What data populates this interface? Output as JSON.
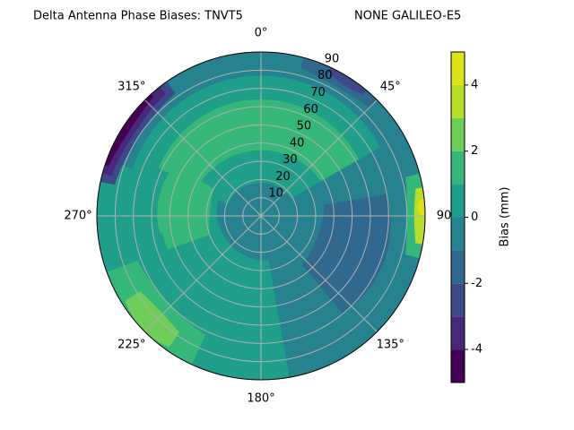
{
  "chart_data": {
    "type": "polar-contour",
    "title": "Delta Antenna Phase Biases: TNVT5",
    "subtitle": "NONE GALILEO-E5",
    "theta_ticks": [
      {
        "value": 0,
        "label": "0°"
      },
      {
        "value": 45,
        "label": "45°"
      },
      {
        "value": 90,
        "label": "90"
      },
      {
        "value": 135,
        "label": "135°"
      },
      {
        "value": 180,
        "label": "180°"
      },
      {
        "value": 225,
        "label": "225°"
      },
      {
        "value": 270,
        "label": "270°"
      },
      {
        "value": 315,
        "label": "315°"
      }
    ],
    "rlim": [
      0,
      90
    ],
    "rticks": [
      10,
      20,
      30,
      40,
      50,
      60,
      70,
      80,
      90
    ],
    "grid": true,
    "levels": [
      -5,
      -4,
      -3,
      -2,
      -1,
      0,
      1,
      2,
      3,
      4,
      5
    ],
    "colors": [
      "#440154",
      "#482878",
      "#3e4989",
      "#31688e",
      "#26828e",
      "#1f9e89",
      "#35b779",
      "#6ece58",
      "#b5de2b",
      "#dde318"
    ],
    "colorbar": {
      "label": "Bias (mm)",
      "ylim": [
        -5,
        5
      ],
      "yticks": [
        -4,
        -2,
        0,
        2,
        4
      ]
    }
  }
}
